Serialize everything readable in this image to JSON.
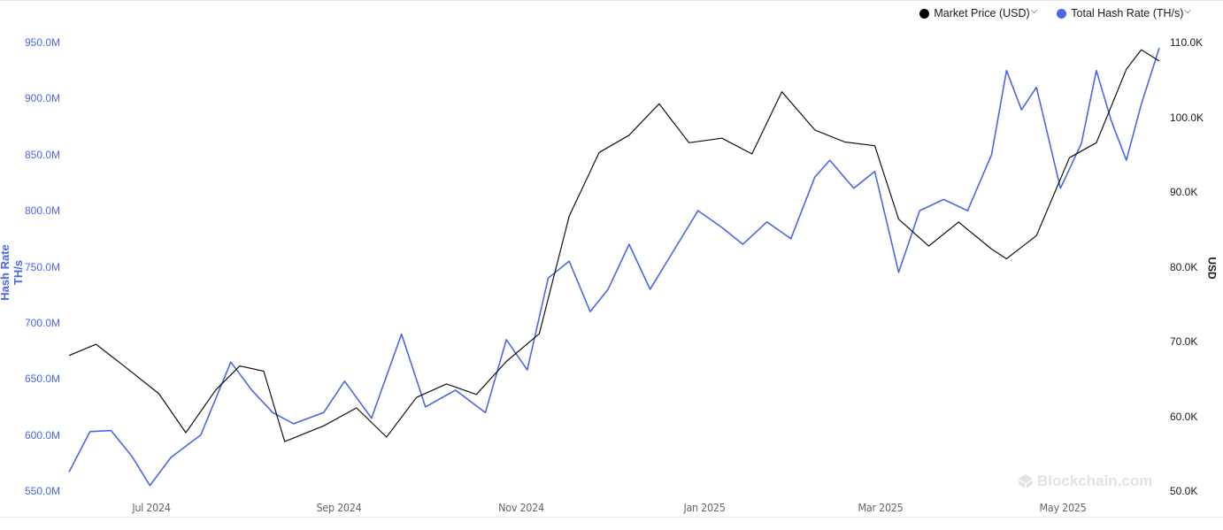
{
  "legend": {
    "items": [
      {
        "label": "Market Price (USD)",
        "color": "#000000"
      },
      {
        "label": "Total Hash Rate (TH/s)",
        "color": "#4a66e8"
      }
    ]
  },
  "axes": {
    "left": {
      "title": "Hash Rate TH/s",
      "ticks": [
        "950.0M",
        "900.0M",
        "850.0M",
        "800.0M",
        "750.0M",
        "700.0M",
        "650.0M",
        "600.0M",
        "550.0M"
      ]
    },
    "right": {
      "title": "USD",
      "ticks": [
        "110.0K",
        "100.0K",
        "90.0K",
        "80.0K",
        "70.0K",
        "60.0K",
        "50.0K"
      ]
    },
    "x": {
      "ticks": [
        "Jul 2024",
        "Sep 2024",
        "Nov 2024",
        "Jan 2025",
        "Mar 2025",
        "May 2025"
      ]
    }
  },
  "watermark": "Blockchain.com",
  "chart_data": {
    "type": "line",
    "title": "",
    "xlabel": "",
    "ylabel": "Hash Rate TH/s",
    "y2label": "USD",
    "ylim": [
      550000000,
      950000000
    ],
    "y2lim": [
      50000,
      110000
    ],
    "x_range": [
      "2024-06-01",
      "2025-05-31"
    ],
    "x_ticks": [
      "Jul 2024",
      "Sep 2024",
      "Nov 2024",
      "Jan 2025",
      "Mar 2025",
      "May 2025"
    ],
    "grid": false,
    "legend_position": "top-right",
    "series": [
      {
        "name": "Market Price (USD)",
        "axis": "right",
        "color": "#000000",
        "points": [
          [
            "2024-06-01",
            68100
          ],
          [
            "2024-06-10",
            69600
          ],
          [
            "2024-06-20",
            66500
          ],
          [
            "2024-07-01",
            63000
          ],
          [
            "2024-07-10",
            57800
          ],
          [
            "2024-07-20",
            63500
          ],
          [
            "2024-07-28",
            66700
          ],
          [
            "2024-08-05",
            66000
          ],
          [
            "2024-08-12",
            56600
          ],
          [
            "2024-08-25",
            58700
          ],
          [
            "2024-09-05",
            61100
          ],
          [
            "2024-09-15",
            57200
          ],
          [
            "2024-09-25",
            62500
          ],
          [
            "2024-10-05",
            64300
          ],
          [
            "2024-10-15",
            62900
          ],
          [
            "2024-10-25",
            67300
          ],
          [
            "2024-11-05",
            71000
          ],
          [
            "2024-11-15",
            86700
          ],
          [
            "2024-11-25",
            95200
          ],
          [
            "2024-12-05",
            97500
          ],
          [
            "2024-12-15",
            101700
          ],
          [
            "2024-12-25",
            96500
          ],
          [
            "2025-01-05",
            97100
          ],
          [
            "2025-01-15",
            95000
          ],
          [
            "2025-01-25",
            103300
          ],
          [
            "2025-02-05",
            98200
          ],
          [
            "2025-02-15",
            96600
          ],
          [
            "2025-02-25",
            96100
          ],
          [
            "2025-03-05",
            86300
          ],
          [
            "2025-03-15",
            82700
          ],
          [
            "2025-03-25",
            85900
          ],
          [
            "2025-04-05",
            82300
          ],
          [
            "2025-04-10",
            81000
          ],
          [
            "2025-04-20",
            84100
          ],
          [
            "2025-05-01",
            94500
          ],
          [
            "2025-05-10",
            96500
          ],
          [
            "2025-05-20",
            106300
          ],
          [
            "2025-05-25",
            108900
          ],
          [
            "2025-05-31",
            107400
          ]
        ]
      },
      {
        "name": "Total Hash Rate (TH/s)",
        "axis": "left",
        "color": "#4a66e8",
        "points": [
          [
            "2024-06-01",
            567000000
          ],
          [
            "2024-06-08",
            603000000
          ],
          [
            "2024-06-15",
            604000000
          ],
          [
            "2024-06-22",
            581000000
          ],
          [
            "2024-06-28",
            555000000
          ],
          [
            "2024-07-05",
            580000000
          ],
          [
            "2024-07-15",
            600000000
          ],
          [
            "2024-07-25",
            665000000
          ],
          [
            "2024-08-01",
            640000000
          ],
          [
            "2024-08-08",
            620000000
          ],
          [
            "2024-08-15",
            610000000
          ],
          [
            "2024-08-25",
            620000000
          ],
          [
            "2024-09-01",
            648000000
          ],
          [
            "2024-09-10",
            615000000
          ],
          [
            "2024-09-20",
            690000000
          ],
          [
            "2024-09-28",
            625000000
          ],
          [
            "2024-10-08",
            640000000
          ],
          [
            "2024-10-18",
            620000000
          ],
          [
            "2024-10-25",
            685000000
          ],
          [
            "2024-11-01",
            658000000
          ],
          [
            "2024-11-08",
            740000000
          ],
          [
            "2024-11-15",
            755000000
          ],
          [
            "2024-11-22",
            710000000
          ],
          [
            "2024-11-28",
            730000000
          ],
          [
            "2024-12-05",
            770000000
          ],
          [
            "2024-12-12",
            730000000
          ],
          [
            "2024-12-20",
            765000000
          ],
          [
            "2024-12-28",
            800000000
          ],
          [
            "2025-01-05",
            785000000
          ],
          [
            "2025-01-12",
            770000000
          ],
          [
            "2025-01-20",
            790000000
          ],
          [
            "2025-01-28",
            775000000
          ],
          [
            "2025-02-05",
            830000000
          ],
          [
            "2025-02-10",
            845000000
          ],
          [
            "2025-02-18",
            820000000
          ],
          [
            "2025-02-25",
            835000000
          ],
          [
            "2025-03-05",
            745000000
          ],
          [
            "2025-03-12",
            800000000
          ],
          [
            "2025-03-20",
            810000000
          ],
          [
            "2025-03-28",
            800000000
          ],
          [
            "2025-04-05",
            850000000
          ],
          [
            "2025-04-10",
            925000000
          ],
          [
            "2025-04-15",
            890000000
          ],
          [
            "2025-04-20",
            910000000
          ],
          [
            "2025-04-28",
            820000000
          ],
          [
            "2025-05-05",
            860000000
          ],
          [
            "2025-05-10",
            925000000
          ],
          [
            "2025-05-15",
            880000000
          ],
          [
            "2025-05-20",
            845000000
          ],
          [
            "2025-05-25",
            895000000
          ],
          [
            "2025-05-31",
            945000000
          ]
        ]
      }
    ]
  }
}
